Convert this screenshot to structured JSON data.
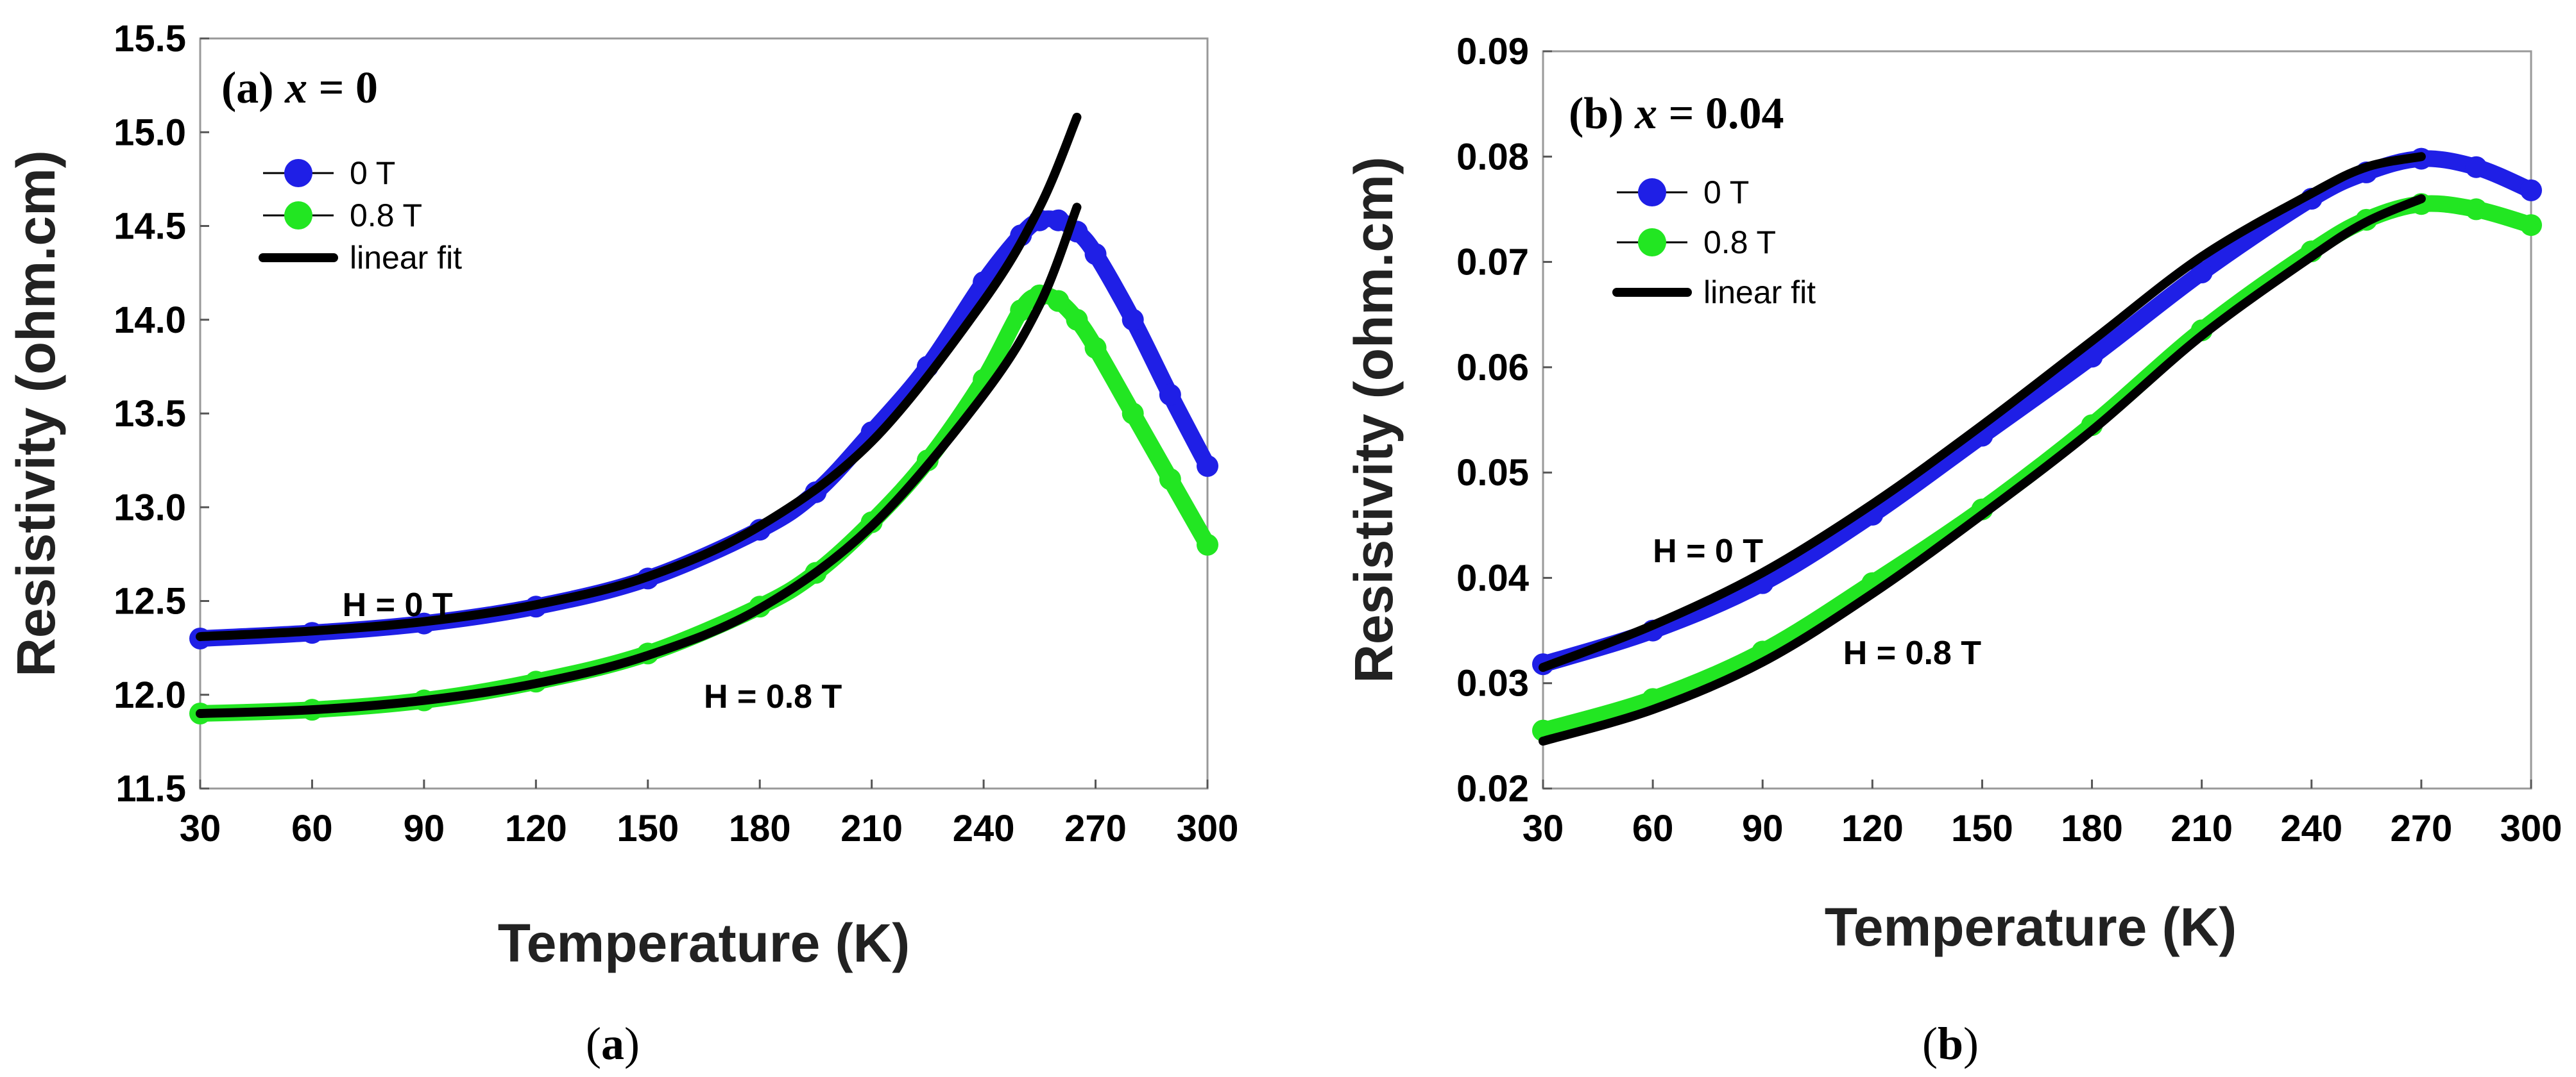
{
  "chart_data": [
    {
      "type": "line",
      "panel": "a",
      "title": "(a) x = 0",
      "title_prefix": "(a) ",
      "title_var": "x",
      "title_rest": " = 0",
      "xlabel": "Temperature (K)",
      "ylabel": "Resistivity (ohm.cm)",
      "xlim": [
        30,
        300
      ],
      "ylim": [
        11.5,
        15.5
      ],
      "xticks": [
        "30",
        "60",
        "90",
        "120",
        "150",
        "180",
        "210",
        "240",
        "270",
        "300"
      ],
      "yticks": [
        "11.5",
        "12.0",
        "12.5",
        "13.0",
        "13.5",
        "14.0",
        "14.5",
        "15.0",
        "15.5"
      ],
      "legend": [
        {
          "label": "0 T",
          "kind": "marker",
          "color": "#1f1fe6"
        },
        {
          "label": "0.8 T",
          "kind": "marker",
          "color": "#22e622"
        },
        {
          "label": "linear fit",
          "kind": "line",
          "color": "#000000"
        }
      ],
      "annotations": [
        {
          "text": "H = 0 T",
          "x": 75,
          "y": 12.42
        },
        {
          "text": "H = 0.8 T",
          "x": 165,
          "y": 11.93
        }
      ],
      "series": [
        {
          "name": "0 T",
          "color": "#1f1fe6",
          "kind": "marker",
          "x": [
            30,
            60,
            90,
            120,
            150,
            180,
            195,
            210,
            225,
            240,
            250,
            255,
            260,
            265,
            270,
            280,
            290,
            300
          ],
          "y": [
            12.3,
            12.33,
            12.38,
            12.47,
            12.62,
            12.88,
            13.08,
            13.4,
            13.75,
            14.2,
            14.45,
            14.53,
            14.53,
            14.47,
            14.35,
            14.0,
            13.6,
            13.22
          ]
        },
        {
          "name": "0.8 T",
          "color": "#22e622",
          "kind": "marker",
          "x": [
            30,
            60,
            90,
            120,
            150,
            180,
            195,
            210,
            225,
            240,
            250,
            255,
            260,
            265,
            270,
            280,
            290,
            300
          ],
          "y": [
            11.9,
            11.92,
            11.97,
            12.07,
            12.22,
            12.47,
            12.65,
            12.92,
            13.25,
            13.68,
            14.05,
            14.13,
            14.1,
            14.0,
            13.85,
            13.5,
            13.15,
            12.8
          ]
        },
        {
          "name": "linear fit (0 T)",
          "color": "#000000",
          "kind": "fit",
          "x": [
            30,
            60,
            90,
            120,
            150,
            180,
            210,
            240,
            255,
            265
          ],
          "y": [
            12.31,
            12.34,
            12.39,
            12.48,
            12.63,
            12.9,
            13.35,
            14.1,
            14.6,
            15.08
          ]
        },
        {
          "name": "linear fit (0.8 T)",
          "color": "#000000",
          "kind": "fit",
          "x": [
            30,
            60,
            90,
            120,
            150,
            180,
            210,
            240,
            255,
            265
          ],
          "y": [
            11.9,
            11.92,
            11.97,
            12.06,
            12.21,
            12.46,
            12.9,
            13.6,
            14.08,
            14.6
          ]
        }
      ]
    },
    {
      "type": "line",
      "panel": "b",
      "title": "(b) x = 0.04",
      "title_prefix": "(b) ",
      "title_var": "x",
      "title_rest": " = 0.04",
      "xlabel": "Temperature (K)",
      "ylabel": "Resistivity (ohm.cm)",
      "xlim": [
        30,
        300
      ],
      "ylim": [
        0.02,
        0.09
      ],
      "xticks": [
        "30",
        "60",
        "90",
        "120",
        "150",
        "180",
        "210",
        "240",
        "270",
        "300"
      ],
      "yticks": [
        "0.02",
        "0.03",
        "0.04",
        "0.05",
        "0.06",
        "0.07",
        "0.08",
        "0.09"
      ],
      "legend": [
        {
          "label": "0 T",
          "kind": "marker",
          "color": "#1f1fe6"
        },
        {
          "label": "0.8 T",
          "kind": "marker",
          "color": "#22e622"
        },
        {
          "label": "linear fit",
          "kind": "line",
          "color": "#000000"
        }
      ],
      "annotations": [
        {
          "text": "H = 0 T",
          "x": 60,
          "y": 0.0415
        },
        {
          "text": "H = 0.8 T",
          "x": 112,
          "y": 0.0318
        }
      ],
      "series": [
        {
          "name": "0 T",
          "color": "#1f1fe6",
          "kind": "marker",
          "x": [
            30,
            60,
            90,
            120,
            150,
            180,
            210,
            240,
            255,
            270,
            285,
            300
          ],
          "y": [
            0.0318,
            0.035,
            0.0395,
            0.046,
            0.0535,
            0.061,
            0.069,
            0.076,
            0.0785,
            0.0798,
            0.079,
            0.0768
          ]
        },
        {
          "name": "0.8 T",
          "color": "#22e622",
          "kind": "marker",
          "x": [
            30,
            60,
            90,
            120,
            150,
            180,
            210,
            240,
            255,
            270,
            285,
            300
          ],
          "y": [
            0.0255,
            0.0285,
            0.033,
            0.0395,
            0.0465,
            0.0545,
            0.0635,
            0.071,
            0.074,
            0.0755,
            0.075,
            0.0735
          ]
        },
        {
          "name": "linear fit (0 T)",
          "color": "#000000",
          "kind": "fit",
          "x": [
            30,
            60,
            90,
            120,
            150,
            180,
            210,
            240,
            255,
            270
          ],
          "y": [
            0.0315,
            0.0355,
            0.0405,
            0.047,
            0.0545,
            0.0625,
            0.0705,
            0.0765,
            0.079,
            0.08
          ]
        },
        {
          "name": "linear fit (0.8 T)",
          "color": "#000000",
          "kind": "fit",
          "x": [
            30,
            60,
            90,
            120,
            150,
            180,
            210,
            240,
            255,
            270
          ],
          "y": [
            0.0245,
            0.0275,
            0.032,
            0.0385,
            0.046,
            0.054,
            0.063,
            0.0705,
            0.0738,
            0.076
          ]
        }
      ]
    }
  ],
  "captions": [
    "(a)",
    "(b)"
  ],
  "caption_letters": [
    "a",
    "b"
  ]
}
